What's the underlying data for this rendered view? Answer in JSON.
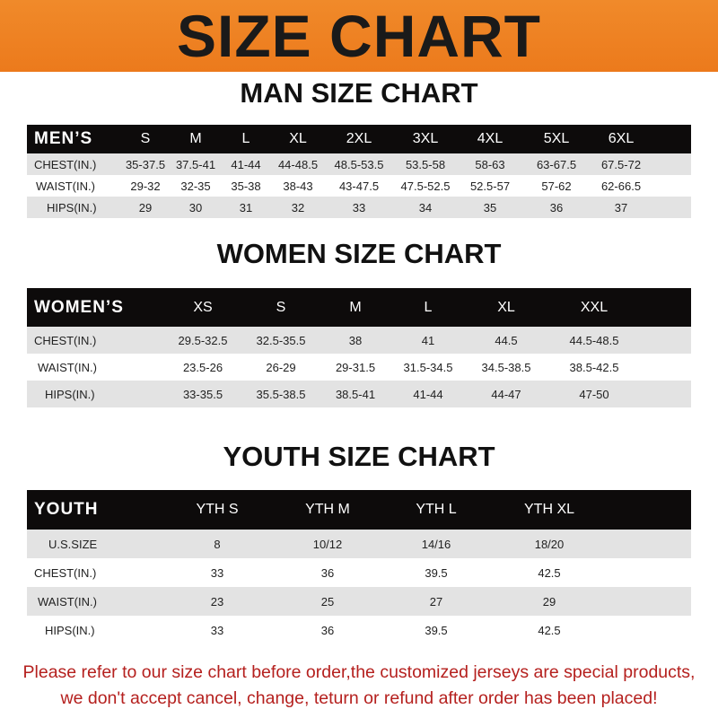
{
  "banner_title": "SIZE CHART",
  "men": {
    "title": "MAN SIZE CHART",
    "header": "MEN’S",
    "sizes": [
      "S",
      "M",
      "L",
      "XL",
      "2XL",
      "3XL",
      "4XL",
      "5XL",
      "6XL"
    ],
    "rows": [
      {
        "label": "CHEST(IN.)",
        "values": [
          "35-37.5",
          "37.5-41",
          "41-44",
          "44-48.5",
          "48.5-53.5",
          "53.5-58",
          "58-63",
          "63-67.5",
          "67.5-72"
        ]
      },
      {
        "label": "WAIST(IN.)",
        "values": [
          "29-32",
          "32-35",
          "35-38",
          "38-43",
          "43-47.5",
          "47.5-52.5",
          "52.5-57",
          "57-62",
          "62-66.5"
        ]
      },
      {
        "label": "HIPS(IN.)",
        "values": [
          "29",
          "30",
          "31",
          "32",
          "33",
          "34",
          "35",
          "36",
          "37"
        ]
      }
    ]
  },
  "women": {
    "title": "WOMEN SIZE CHART",
    "header": "WOMEN’S",
    "sizes": [
      "XS",
      "S",
      "M",
      "L",
      "XL",
      "XXL"
    ],
    "rows": [
      {
        "label": "CHEST(IN.)",
        "values": [
          "29.5-32.5",
          "32.5-35.5",
          "38",
          "41",
          "44.5",
          "44.5-48.5"
        ]
      },
      {
        "label": "WAIST(IN.)",
        "values": [
          "23.5-26",
          "26-29",
          "29-31.5",
          "31.5-34.5",
          "34.5-38.5",
          "38.5-42.5"
        ]
      },
      {
        "label": "HIPS(IN.)",
        "values": [
          "33-35.5",
          "35.5-38.5",
          "38.5-41",
          "41-44",
          "44-47",
          "47-50"
        ]
      }
    ]
  },
  "youth": {
    "title": "YOUTH SIZE CHART",
    "header": "YOUTH",
    "sizes": [
      "YTH S",
      "YTH M",
      "YTH L",
      "YTH XL"
    ],
    "rows": [
      {
        "label": "U.S.SIZE",
        "values": [
          "8",
          "10/12",
          "14/16",
          "18/20"
        ]
      },
      {
        "label": "CHEST(IN.)",
        "values": [
          "33",
          "36",
          "39.5",
          "42.5"
        ]
      },
      {
        "label": "WAIST(IN.)",
        "values": [
          "23",
          "25",
          "27",
          "29"
        ]
      },
      {
        "label": "HIPS(IN.)",
        "values": [
          "33",
          "36",
          "39.5",
          "42.5"
        ]
      }
    ]
  },
  "notice": {
    "line1": "Please refer to our size chart before order,the customized jerseys are special products,",
    "line2": "we don't accept cancel, change, teturn or refund after order has been placed!"
  }
}
